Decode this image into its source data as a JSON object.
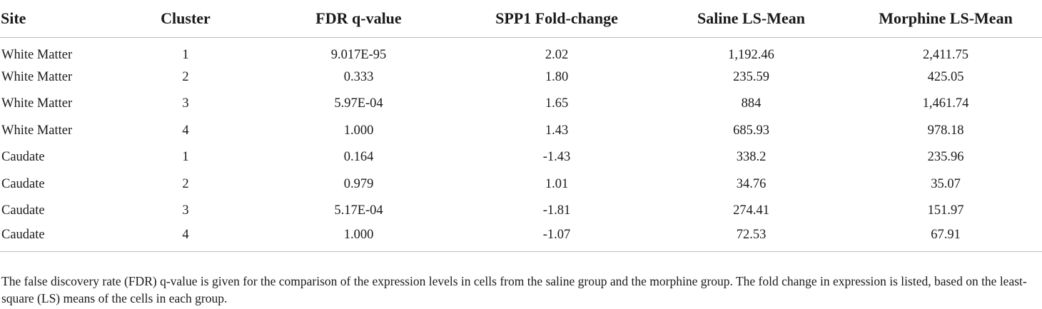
{
  "table": {
    "columns": [
      "Site",
      "Cluster",
      "FDR q-value",
      "SPP1 Fold-change",
      "Saline LS-Mean",
      "Morphine LS-Mean"
    ],
    "rows": [
      [
        "White Matter",
        "1",
        "9.017E-95",
        "2.02",
        "1,192.46",
        "2,411.75"
      ],
      [
        "White Matter",
        "2",
        "0.333",
        "1.80",
        "235.59",
        "425.05"
      ],
      [
        "White Matter",
        "3",
        "5.97E-04",
        "1.65",
        "884",
        "1,461.74"
      ],
      [
        "White Matter",
        "4",
        "1.000",
        "1.43",
        "685.93",
        "978.18"
      ],
      [
        "Caudate",
        "1",
        "0.164",
        "-1.43",
        "338.2",
        "235.96"
      ],
      [
        "Caudate",
        "2",
        "0.979",
        "1.01",
        "34.76",
        "35.07"
      ],
      [
        "Caudate",
        "3",
        "5.17E-04",
        "-1.81",
        "274.41",
        "151.97"
      ],
      [
        "Caudate",
        "4",
        "1.000",
        "-1.07",
        "72.53",
        "67.91"
      ]
    ]
  },
  "footnote": "The false discovery rate (FDR) q-value is given for the comparison of the expression levels in cells from the saline group and the morphine group. The fold change in expression is listed, based on the least-square (LS) means of the cells in each group."
}
